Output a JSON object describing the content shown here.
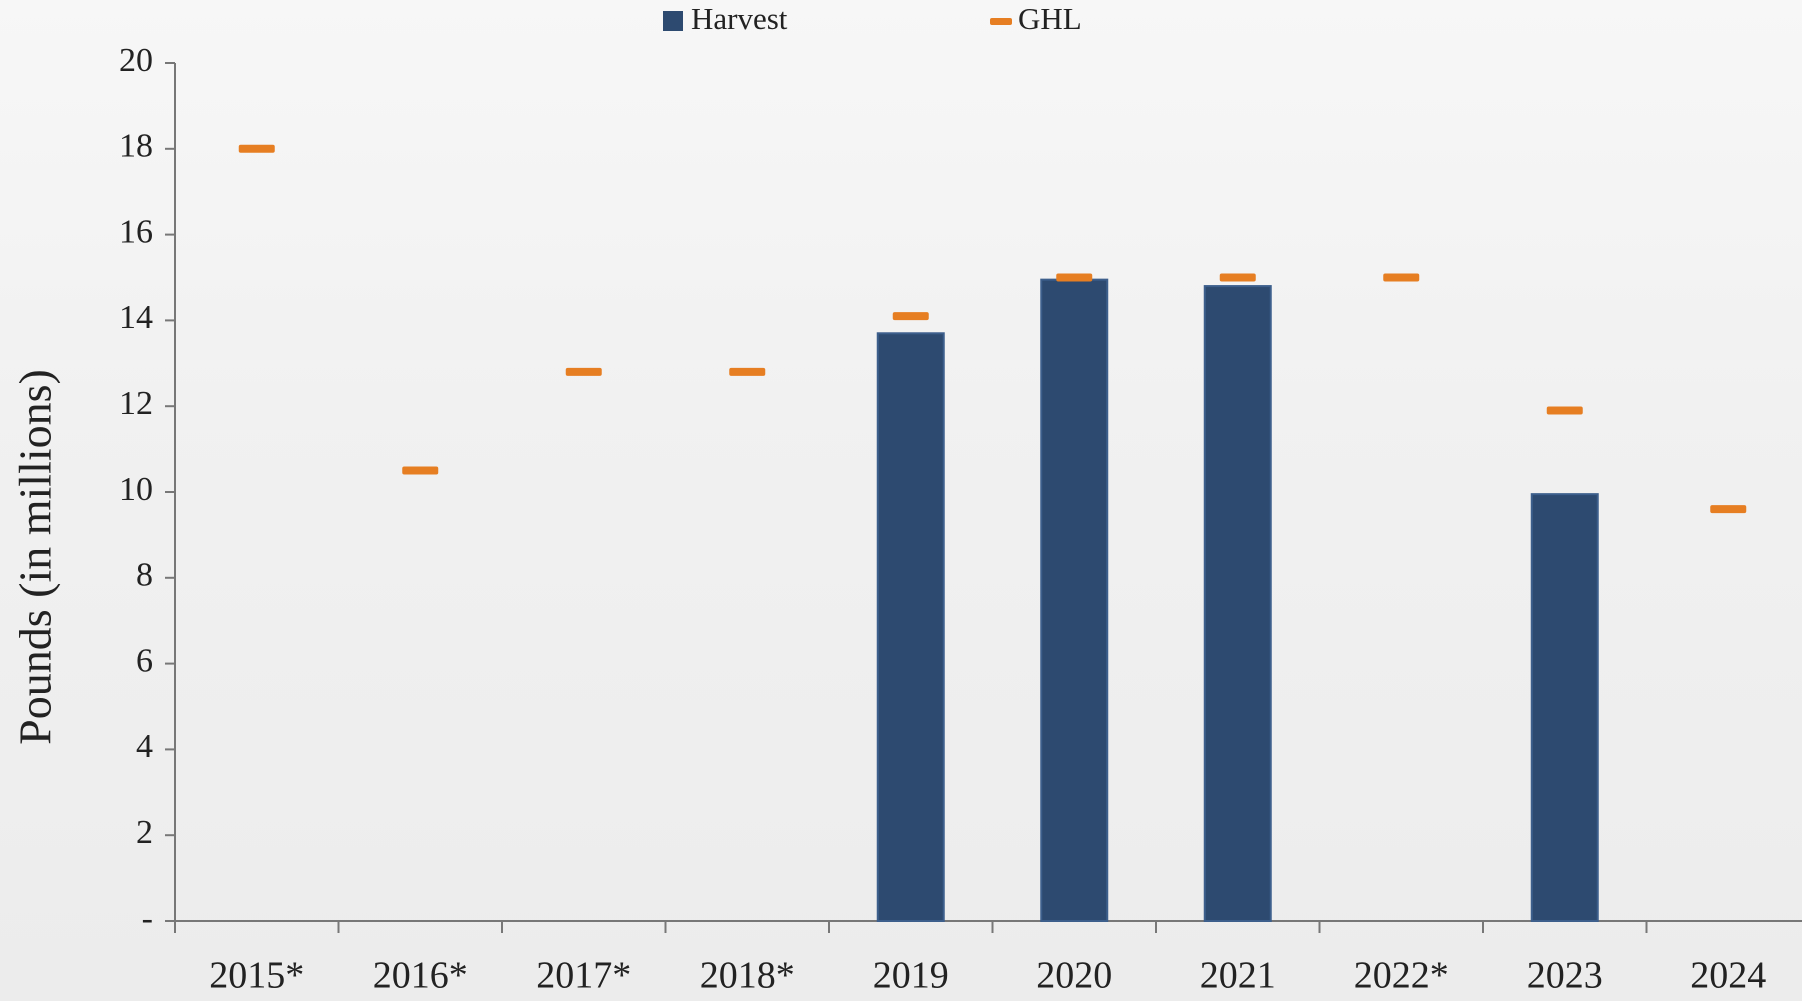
{
  "chart_data": {
    "type": "bar",
    "y_label": "Pounds (in millions)",
    "categories": [
      "2015*",
      "2016*",
      "2017*",
      "2018*",
      "2019",
      "2020",
      "2021",
      "2022*",
      "2023",
      "2024"
    ],
    "series": [
      {
        "name": "Harvest",
        "type": "bar",
        "color": "#2d4a70",
        "values": [
          null,
          null,
          null,
          null,
          13.7,
          14.95,
          14.8,
          null,
          9.95,
          null
        ]
      },
      {
        "name": "GHL",
        "type": "marker",
        "color": "#e67e22",
        "values": [
          18,
          10.5,
          12.8,
          12.8,
          14.1,
          15,
          15,
          15,
          11.9,
          9.6
        ]
      }
    ],
    "ylim": [
      0,
      20
    ],
    "yticks": [
      {
        "value": 0,
        "label": "-"
      },
      2,
      4,
      6,
      8,
      10,
      12,
      14,
      16,
      18,
      20
    ],
    "grid": false
  }
}
